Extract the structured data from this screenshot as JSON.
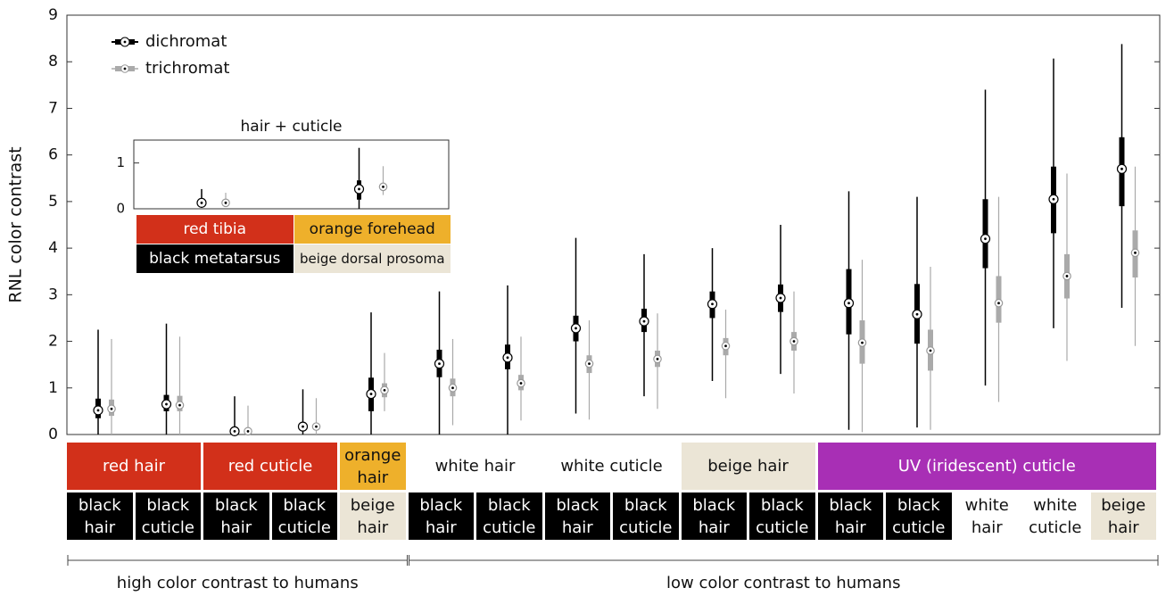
{
  "chart_data": [
    {
      "type": "box",
      "y_label": "RNL color contrast",
      "ylim": [
        0,
        9
      ],
      "yticks": [
        0,
        1,
        2,
        3,
        4,
        5,
        6,
        7,
        8,
        9
      ],
      "legend": "upper left",
      "series": [
        {
          "name": "dichromat",
          "color": "#000000",
          "values": [
            [
              0,
              0.35,
              0.52,
              0.77,
              2.25
            ],
            [
              0,
              0.5,
              0.65,
              0.85,
              2.38
            ],
            [
              0,
              0,
              0.07,
              0.1,
              0.82
            ],
            [
              0,
              0.12,
              0.17,
              0.22,
              0.97
            ],
            [
              0,
              0.5,
              0.87,
              1.22,
              2.62
            ],
            [
              0,
              1.23,
              1.52,
              1.82,
              3.07
            ],
            [
              0,
              1.4,
              1.65,
              1.93,
              3.2
            ],
            [
              0.45,
              2.0,
              2.28,
              2.55,
              4.22
            ],
            [
              0.82,
              2.2,
              2.43,
              2.7,
              3.87
            ],
            [
              1.15,
              2.5,
              2.8,
              3.07,
              4.0
            ],
            [
              1.3,
              2.63,
              2.93,
              3.22,
              4.5
            ],
            [
              0.1,
              2.15,
              2.82,
              3.55,
              5.22
            ],
            [
              0.15,
              1.95,
              2.58,
              3.23,
              5.1
            ],
            [
              1.05,
              3.57,
              4.2,
              5.05,
              7.4
            ],
            [
              2.28,
              4.32,
              5.05,
              5.75,
              8.07
            ],
            [
              2.72,
              4.9,
              5.7,
              6.38,
              8.38
            ]
          ]
        },
        {
          "name": "trichromat",
          "color": "#aaaaaa",
          "values": [
            [
              0,
              0.4,
              0.55,
              0.75,
              2.05
            ],
            [
              0,
              0.5,
              0.63,
              0.83,
              2.1
            ],
            [
              0,
              0,
              0.07,
              0.1,
              0.62
            ],
            [
              0,
              0.13,
              0.17,
              0.22,
              0.78
            ],
            [
              0.5,
              0.8,
              0.95,
              1.1,
              1.75
            ],
            [
              0.2,
              0.82,
              1.0,
              1.2,
              2.05
            ],
            [
              0.3,
              0.95,
              1.1,
              1.28,
              2.1
            ],
            [
              0.32,
              1.32,
              1.52,
              1.7,
              2.45
            ],
            [
              0.55,
              1.45,
              1.62,
              1.8,
              2.6
            ],
            [
              0.78,
              1.7,
              1.9,
              2.07,
              2.68
            ],
            [
              0.88,
              1.8,
              2.0,
              2.2,
              3.07
            ],
            [
              0.05,
              1.52,
              1.97,
              2.45,
              3.75
            ],
            [
              0.1,
              1.37,
              1.8,
              2.25,
              3.6
            ],
            [
              0.7,
              2.4,
              2.82,
              3.4,
              5.1
            ],
            [
              1.58,
              2.92,
              3.4,
              3.87,
              5.6
            ],
            [
              1.9,
              3.37,
              3.9,
              4.38,
              5.75
            ]
          ]
        }
      ],
      "groups": [
        {
          "label": "red hair",
          "span": 2,
          "color": "#d2301a"
        },
        {
          "label": "red cuticle",
          "span": 2,
          "color": "#d2301a"
        },
        {
          "label": "orange hair",
          "span": 1,
          "color": "#eeb02b"
        },
        {
          "label": "white hair",
          "span": 2,
          "color": "#ffffff"
        },
        {
          "label": "white cuticle",
          "span": 2,
          "color": "#ffffff"
        },
        {
          "label": "beige hair",
          "span": 2,
          "color": "#ebe5d6"
        },
        {
          "label": "UV (iridescent) cuticle",
          "span": 5,
          "color": "#a82fb5"
        }
      ],
      "categories": [
        "black hair",
        "black cuticle",
        "black hair",
        "black cuticle",
        "beige hair",
        "black hair",
        "black cuticle",
        "black hair",
        "black cuticle",
        "black hair",
        "black cuticle",
        "black hair",
        "black cuticle",
        "white hair",
        "white cuticle",
        "beige hair"
      ],
      "category_colors": [
        "#000000",
        "#000000",
        "#000000",
        "#000000",
        "#ebe5d6",
        "#000000",
        "#000000",
        "#000000",
        "#000000",
        "#000000",
        "#000000",
        "#000000",
        "#000000",
        "#ffffff",
        "#ffffff",
        "#ebe5d6"
      ],
      "brackets": [
        {
          "label": "high color contrast to humans",
          "span": 5
        },
        {
          "label": "low color contrast to humans",
          "span": 11
        }
      ]
    },
    {
      "type": "box",
      "title": "hair + cuticle",
      "ylim": [
        0,
        1.5
      ],
      "yticks": [
        0,
        1
      ],
      "series": [
        {
          "color": "#000000",
          "values": [
            [
              0.02,
              0.1,
              0.13,
              0.18,
              0.43
            ],
            [
              0,
              0.2,
              0.43,
              0.62,
              1.33
            ]
          ]
        },
        {
          "color": "#aaaaaa",
          "values": [
            [
              0.05,
              0.1,
              0.13,
              0.16,
              0.35
            ],
            [
              0.3,
              0.42,
              0.48,
              0.55,
              0.93
            ]
          ]
        }
      ],
      "groups": [
        {
          "label": "red tibia",
          "span": 1,
          "color": "#d2301a"
        },
        {
          "label": "orange forehead",
          "span": 1,
          "color": "#eeb02b"
        }
      ],
      "categories": [
        "black metatarsus",
        "beige dorsal prosoma"
      ],
      "category_colors": [
        "#000000",
        "#ebe5d6"
      ]
    }
  ]
}
